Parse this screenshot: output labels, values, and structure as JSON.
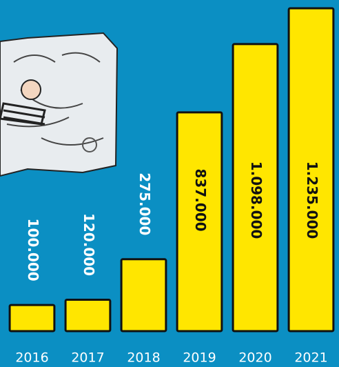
{
  "chart_data": {
    "type": "bar",
    "categories": [
      "2016",
      "2017",
      "2018",
      "2019",
      "2020",
      "2021"
    ],
    "values": [
      100000,
      120000,
      275000,
      837000,
      1098000,
      1235000
    ],
    "value_labels": [
      "100.000",
      "120.000",
      "275.000",
      "837.000",
      "1.098.000",
      "1.235.000"
    ],
    "color": "#ffe600"
  }
}
